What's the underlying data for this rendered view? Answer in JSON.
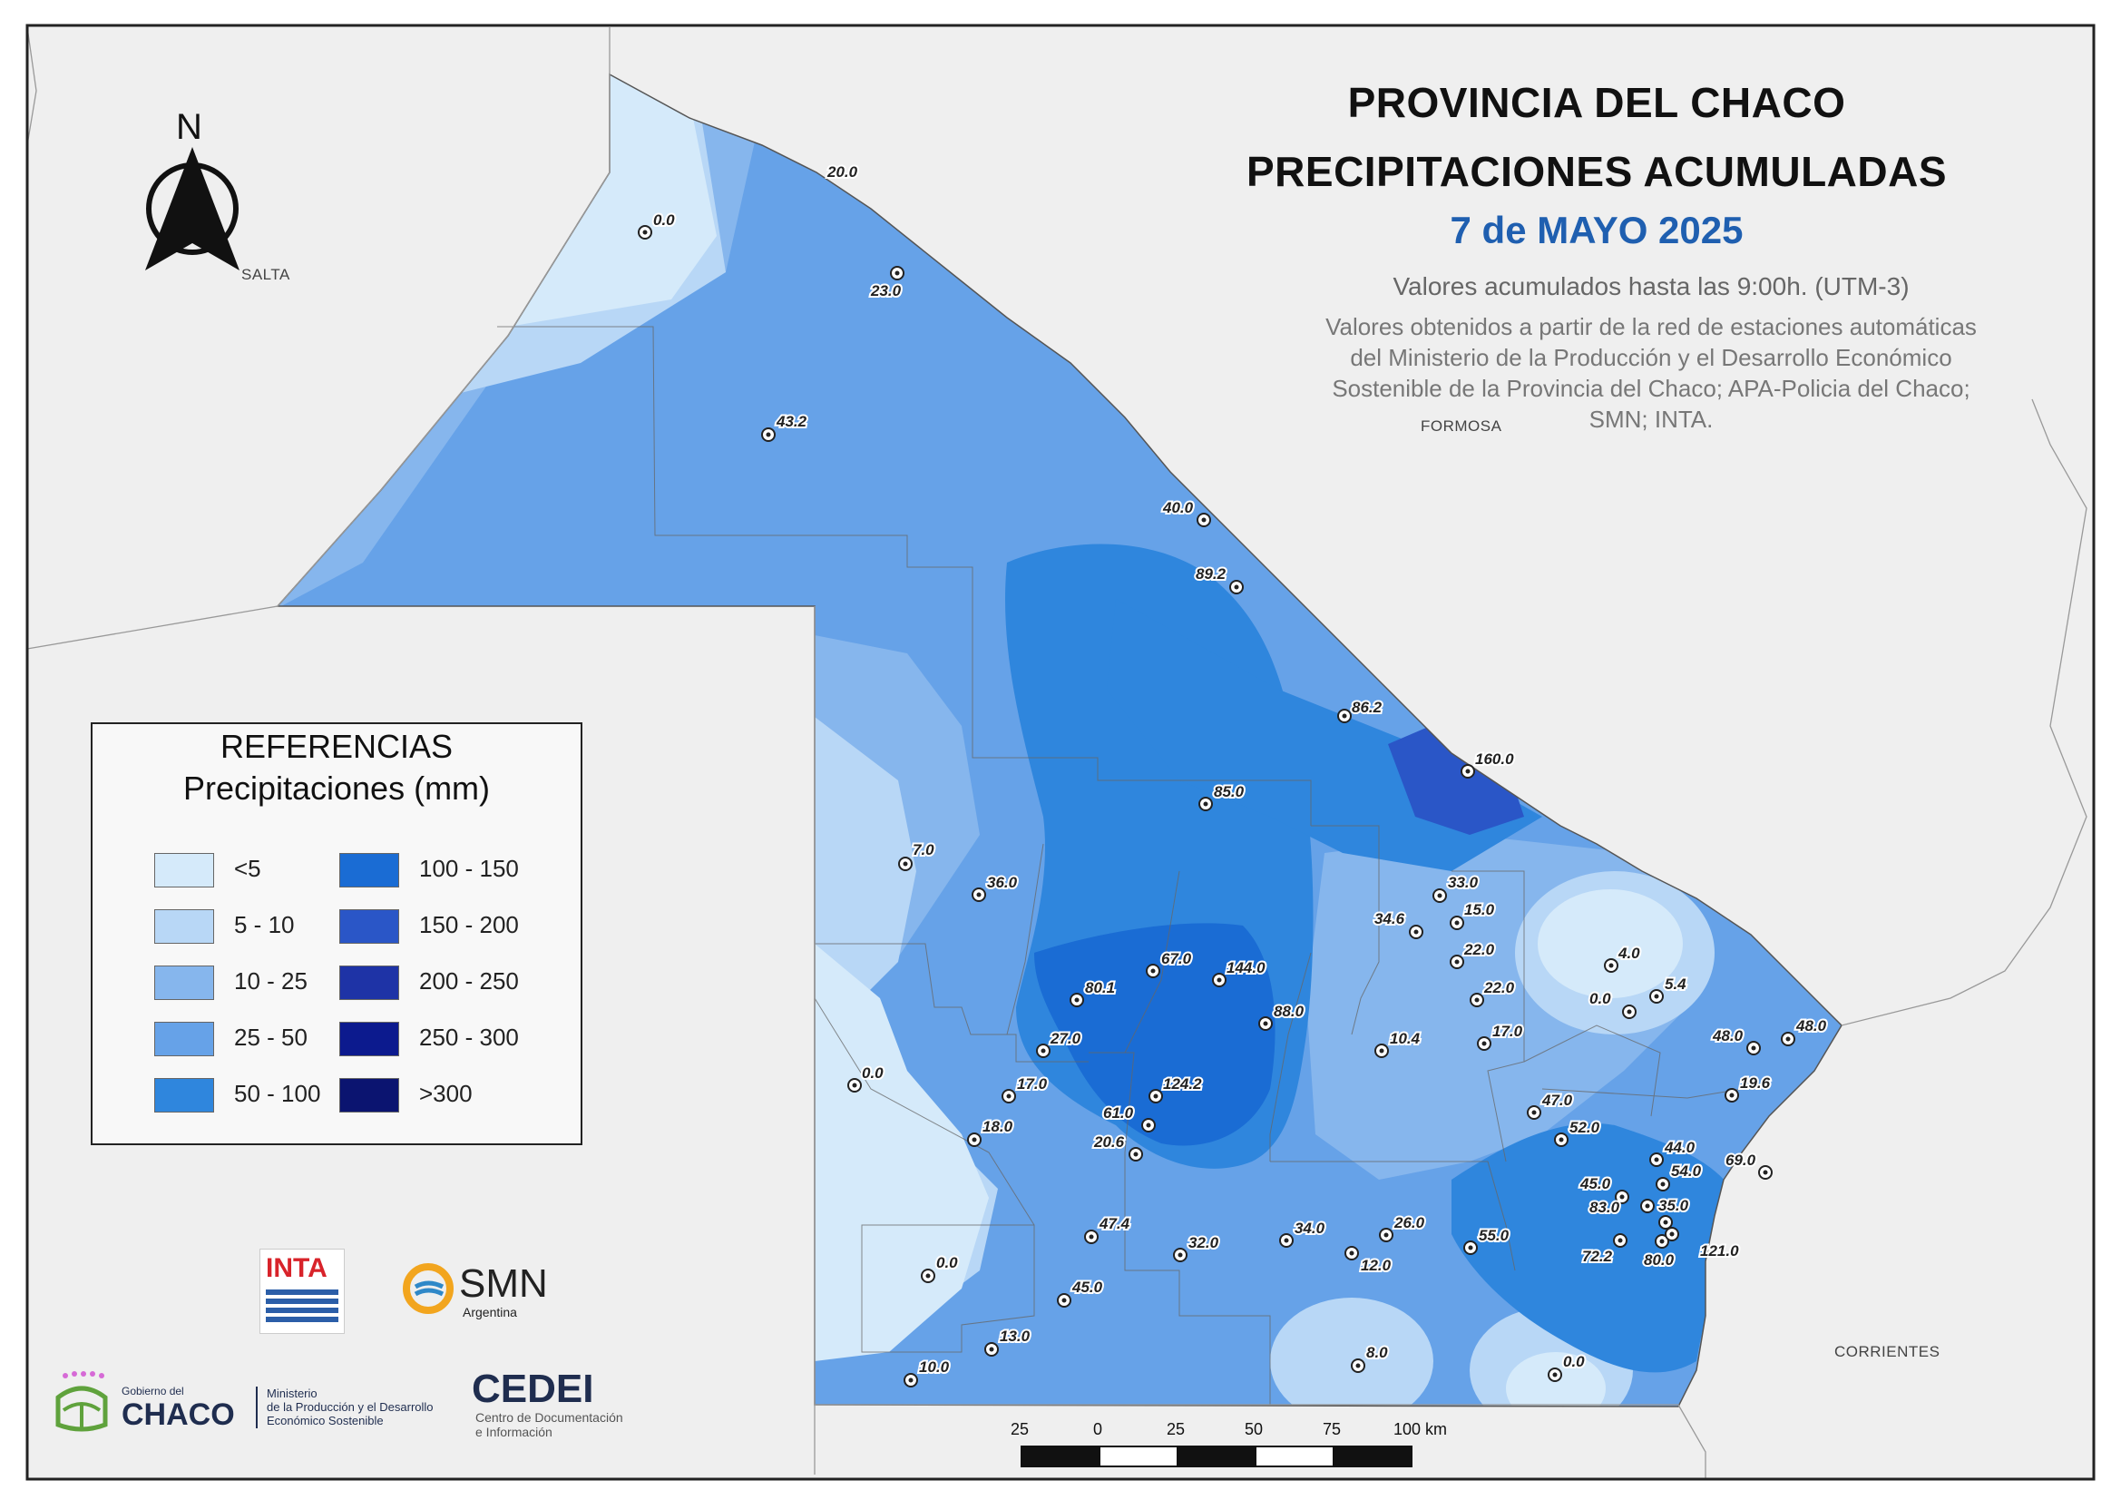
{
  "title": {
    "line1": "PROVINCIA DEL CHACO",
    "line2": "PRECIPITACIONES ACUMULADAS",
    "date": "7 de MAYO 2025",
    "subtitle": "Valores acumulados hasta las 9:00h. (UTM-3)",
    "source_lines": [
      "Valores obtenidos a partir de la red de estaciones automáticas",
      "del Ministerio de la Producción y el Desarrollo Económico",
      "Sostenible de la Provincia del Chaco; APA-Policia del Chaco;",
      "SMN; INTA."
    ]
  },
  "north_arrow": {
    "label": "N",
    "icon": "north-arrow-icon"
  },
  "regions": {
    "salta": "SALTA",
    "formosa": "FORMOSA",
    "corrientes": "CORRIENTES"
  },
  "legend": {
    "title1": "REFERENCIAS",
    "title2": "Precipitaciones (mm)",
    "classes": [
      {
        "label": "<5",
        "color": "#d5eafa"
      },
      {
        "label": "5 - 10",
        "color": "#b8d7f6"
      },
      {
        "label": "10 - 25",
        "color": "#86b6ed"
      },
      {
        "label": "25 - 50",
        "color": "#66a2e8"
      },
      {
        "label": "50 - 100",
        "color": "#2f86dd"
      },
      {
        "label": "100 - 150",
        "color": "#1a6cd4"
      },
      {
        "label": "150 - 200",
        "color": "#2a56c7"
      },
      {
        "label": "200 - 250",
        "color": "#1e33a6"
      },
      {
        "label": "250 - 300",
        "color": "#0c1a8e"
      },
      {
        "label": ">300",
        "color": "#0b1470"
      }
    ]
  },
  "stations": [
    {
      "value": "0.0"
    },
    {
      "value": "20.0"
    },
    {
      "value": "23.0"
    },
    {
      "value": "43.2"
    },
    {
      "value": "40.0"
    },
    {
      "value": "89.2"
    },
    {
      "value": "86.2"
    },
    {
      "value": "160.0"
    },
    {
      "value": "85.0"
    },
    {
      "value": "7.0"
    },
    {
      "value": "36.0"
    },
    {
      "value": "33.0"
    },
    {
      "value": "15.0"
    },
    {
      "value": "34.6"
    },
    {
      "value": "22.0"
    },
    {
      "value": "4.0"
    },
    {
      "value": "5.4"
    },
    {
      "value": "0.0"
    },
    {
      "value": "22.0"
    },
    {
      "value": "67.0"
    },
    {
      "value": "144.0"
    },
    {
      "value": "80.1"
    },
    {
      "value": "88.0"
    },
    {
      "value": "17.0"
    },
    {
      "value": "10.4"
    },
    {
      "value": "48.0"
    },
    {
      "value": "48.0"
    },
    {
      "value": "27.0"
    },
    {
      "value": "0.0"
    },
    {
      "value": "17.0"
    },
    {
      "value": "124.2"
    },
    {
      "value": "19.6"
    },
    {
      "value": "47.0"
    },
    {
      "value": "61.0"
    },
    {
      "value": "18.0"
    },
    {
      "value": "52.0"
    },
    {
      "value": "20.6"
    },
    {
      "value": "44.0"
    },
    {
      "value": "69.0"
    },
    {
      "value": "54.0"
    },
    {
      "value": "45.0"
    },
    {
      "value": "83.0"
    },
    {
      "value": "35.0"
    },
    {
      "value": "47.4"
    },
    {
      "value": "32.0"
    },
    {
      "value": "34.0"
    },
    {
      "value": "26.0"
    },
    {
      "value": "55.0"
    },
    {
      "value": "72.2"
    },
    {
      "value": "80.0"
    },
    {
      "value": "121.0"
    },
    {
      "value": "12.0"
    },
    {
      "value": "0.0"
    },
    {
      "value": "45.0"
    },
    {
      "value": "13.0"
    },
    {
      "value": "8.0"
    },
    {
      "value": "0.0"
    },
    {
      "value": "10.0"
    }
  ],
  "scale_bar": {
    "labels": [
      "25",
      "0",
      "25",
      "50",
      "75",
      "100 km"
    ]
  },
  "logos": {
    "inta": "INTA",
    "smn": "SMN",
    "smn_sub": "Argentina",
    "gob_small": "Gobierno del",
    "gob_big": "CHACO",
    "ministry": [
      "Ministerio",
      "de la Producción y el Desarrollo",
      "Económico Sostenible"
    ],
    "cedei": "CEDEI",
    "cedei_sub": [
      "Centro de Documentación",
      "e Información"
    ]
  }
}
